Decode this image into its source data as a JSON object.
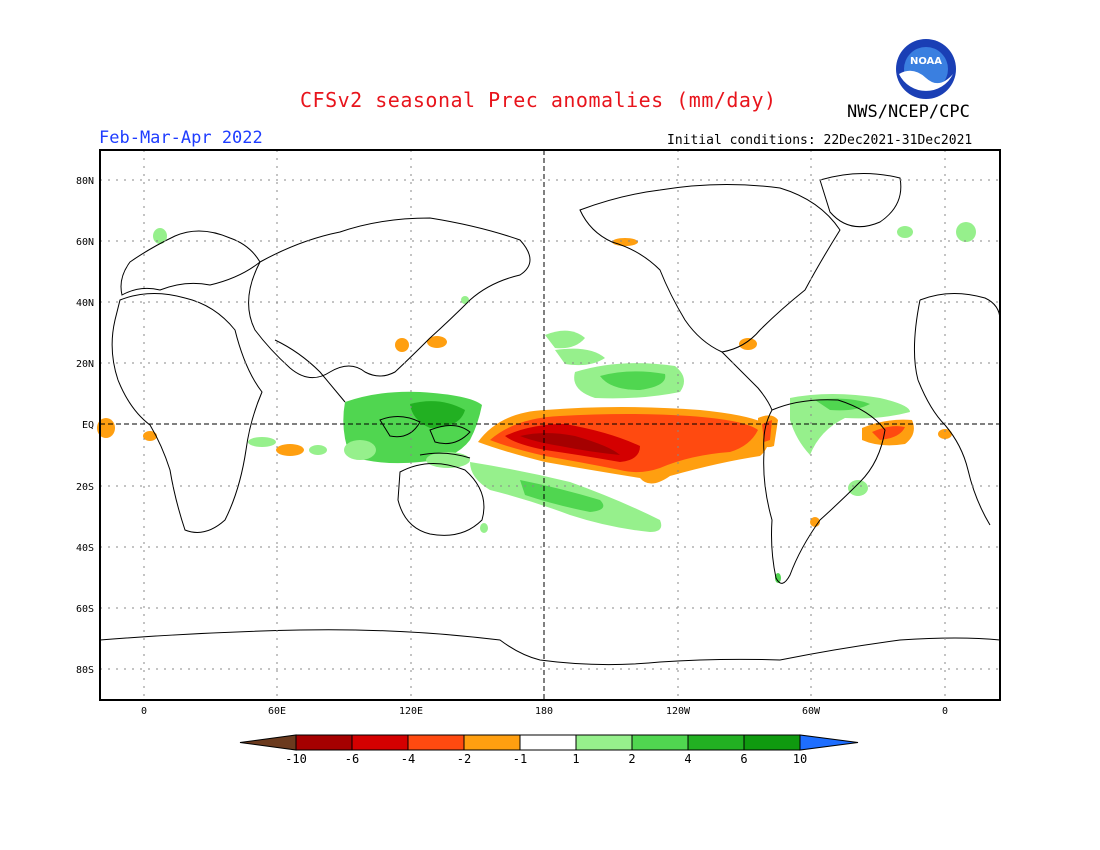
{
  "header": {
    "title": "CFSv2 seasonal Prec anomalies (mm/day)",
    "organization": "NWS/NCEP/CPC",
    "period": "Feb-Mar-Apr 2022",
    "initial_conditions": "Initial conditions: 22Dec2021-31Dec2021",
    "logo_text": "NOAA"
  },
  "map": {
    "lat_labels": [
      "80N",
      "60N",
      "40N",
      "20N",
      "EQ",
      "20S",
      "40S",
      "60S",
      "80S"
    ],
    "lon_labels": [
      "0",
      "60E",
      "120E",
      "180",
      "120W",
      "60W",
      "0"
    ]
  },
  "colorbar": {
    "labels": [
      "-10",
      "-6",
      "-4",
      "-2",
      "-1",
      "1",
      "2",
      "4",
      "6",
      "10"
    ],
    "colors": [
      "#6b3a1e",
      "#a50000",
      "#d40000",
      "#ff4a10",
      "#ff9f10",
      "#ffffff",
      "#96f08c",
      "#50d650",
      "#22b022",
      "#0f9a0f",
      "#1e6eff"
    ]
  }
}
